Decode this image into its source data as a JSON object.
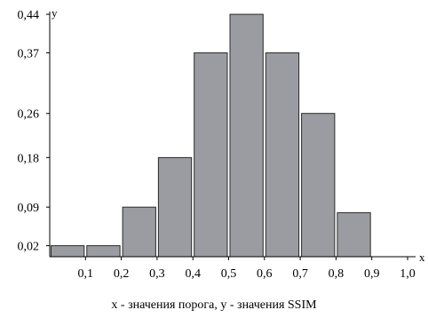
{
  "chart_data": {
    "type": "bar",
    "title": "",
    "xlabel": "x",
    "ylabel": "y",
    "caption": "x - значения порога, y - значения SSIM",
    "x_range": [
      0.0,
      1.0
    ],
    "ylim": [
      0.0,
      0.445
    ],
    "grid": false,
    "bin_width": 0.1,
    "x_ticks": [
      {
        "value": 0.1,
        "label": "0,1"
      },
      {
        "value": 0.2,
        "label": "0,2"
      },
      {
        "value": 0.3,
        "label": "0,3"
      },
      {
        "value": 0.4,
        "label": "0,4"
      },
      {
        "value": 0.5,
        "label": "0,5"
      },
      {
        "value": 0.6,
        "label": "0,6"
      },
      {
        "value": 0.7,
        "label": "0,7"
      },
      {
        "value": 0.8,
        "label": "0,8"
      },
      {
        "value": 0.9,
        "label": "0,9"
      },
      {
        "value": 1.0,
        "label": "1,0"
      }
    ],
    "y_ticks": [
      {
        "value": 0.02,
        "label": "0,02"
      },
      {
        "value": 0.09,
        "label": "0,09"
      },
      {
        "value": 0.18,
        "label": "0,18"
      },
      {
        "value": 0.26,
        "label": "0,26"
      },
      {
        "value": 0.37,
        "label": "0,37"
      },
      {
        "value": 0.44,
        "label": "0,44"
      }
    ],
    "bars": [
      {
        "x_start": 0.0,
        "x_end": 0.1,
        "value": 0.02
      },
      {
        "x_start": 0.1,
        "x_end": 0.2,
        "value": 0.02
      },
      {
        "x_start": 0.2,
        "x_end": 0.3,
        "value": 0.09
      },
      {
        "x_start": 0.3,
        "x_end": 0.4,
        "value": 0.18
      },
      {
        "x_start": 0.4,
        "x_end": 0.5,
        "value": 0.37
      },
      {
        "x_start": 0.5,
        "x_end": 0.6,
        "value": 0.44
      },
      {
        "x_start": 0.6,
        "x_end": 0.7,
        "value": 0.37
      },
      {
        "x_start": 0.7,
        "x_end": 0.8,
        "value": 0.26
      },
      {
        "x_start": 0.8,
        "x_end": 0.9,
        "value": 0.08
      }
    ],
    "colors": {
      "bar_fill": "#9a9ca1",
      "bar_stroke": "#2a2a2a",
      "axis": "#000000"
    }
  }
}
